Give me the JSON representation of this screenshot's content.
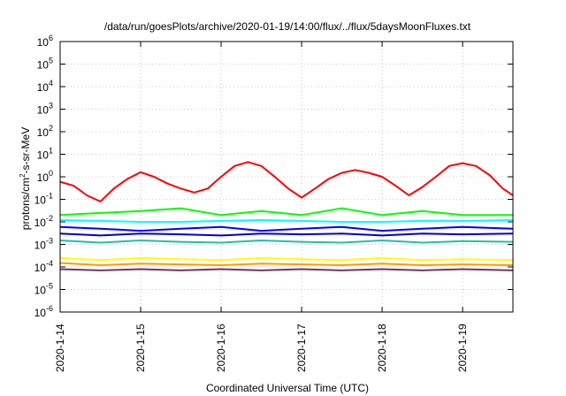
{
  "chart_data": {
    "type": "line",
    "title": "/data/run/goesPlots/archive/2020-01-19/14:00/flux/../flux/5daysMoonFluxes.txt",
    "xlabel": "Coordinated Universal Time (UTC)",
    "ylabel": "protons/cm²-s-sr-MeV",
    "ylabel_base": "protons/cm",
    "ylabel_sup": "2",
    "ylabel_rest": "-s-sr-MeV",
    "y_scale": "log",
    "ylim": [
      1e-06,
      1000000.0
    ],
    "y_ticks": [
      {
        "value": 1e-06,
        "base": "10",
        "exp": "-6"
      },
      {
        "value": 1e-05,
        "base": "10",
        "exp": "-5"
      },
      {
        "value": 0.0001,
        "base": "10",
        "exp": "-4"
      },
      {
        "value": 0.001,
        "base": "10",
        "exp": "-3"
      },
      {
        "value": 0.01,
        "base": "10",
        "exp": "-2"
      },
      {
        "value": 0.1,
        "base": "10",
        "exp": "-1"
      },
      {
        "value": 1,
        "base": "10",
        "exp": "0"
      },
      {
        "value": 10,
        "base": "10",
        "exp": "1"
      },
      {
        "value": 100,
        "base": "10",
        "exp": "2"
      },
      {
        "value": 1000,
        "base": "10",
        "exp": "3"
      },
      {
        "value": 10000,
        "base": "10",
        "exp": "4"
      },
      {
        "value": 100000,
        "base": "10",
        "exp": "5"
      },
      {
        "value": 1000000,
        "base": "10",
        "exp": "6"
      }
    ],
    "x_type": "date",
    "xlim": [
      "2020-01-14",
      "2020-01-19 15:00"
    ],
    "x_ticks": [
      "2020-1-14",
      "2020-1-15",
      "2020-1-16",
      "2020-1-17",
      "2020-1-18",
      "2020-1-19"
    ],
    "grid": true,
    "series": [
      {
        "color": "#ff0000",
        "x": [
          "2020-01-14 00:00",
          "2020-01-14 04:00",
          "2020-01-14 08:00",
          "2020-01-14 12:00",
          "2020-01-14 16:00",
          "2020-01-14 20:00",
          "2020-01-15 00:00",
          "2020-01-15 04:00",
          "2020-01-15 08:00",
          "2020-01-15 12:00",
          "2020-01-15 16:00",
          "2020-01-15 20:00",
          "2020-01-16 00:00",
          "2020-01-16 04:00",
          "2020-01-16 08:00",
          "2020-01-16 12:00",
          "2020-01-16 16:00",
          "2020-01-16 20:00",
          "2020-01-17 00:00",
          "2020-01-17 04:00",
          "2020-01-17 08:00",
          "2020-01-17 12:00",
          "2020-01-17 16:00",
          "2020-01-17 20:00",
          "2020-01-18 00:00",
          "2020-01-18 04:00",
          "2020-01-18 08:00",
          "2020-01-18 12:00",
          "2020-01-18 16:00",
          "2020-01-18 20:00",
          "2020-01-19 00:00",
          "2020-01-19 04:00",
          "2020-01-19 08:00",
          "2020-01-19 12:00",
          "2020-01-19 15:00"
        ],
        "y": [
          0.6,
          0.4,
          0.15,
          0.08,
          0.3,
          0.8,
          1.6,
          1.0,
          0.5,
          0.3,
          0.2,
          0.3,
          1.0,
          3.0,
          4.5,
          3.0,
          1.0,
          0.3,
          0.12,
          0.3,
          0.8,
          1.5,
          2.0,
          1.5,
          1.0,
          0.4,
          0.15,
          0.35,
          1.0,
          3.0,
          4.0,
          3.0,
          1.2,
          0.3,
          0.15
        ]
      },
      {
        "color": "#00ff00",
        "x": [
          "2020-01-14 00:00",
          "2020-01-14 12:00",
          "2020-01-15 00:00",
          "2020-01-15 12:00",
          "2020-01-16 00:00",
          "2020-01-16 12:00",
          "2020-01-17 00:00",
          "2020-01-17 12:00",
          "2020-01-18 00:00",
          "2020-01-18 12:00",
          "2020-01-19 00:00",
          "2020-01-19 15:00"
        ],
        "y": [
          0.02,
          0.025,
          0.03,
          0.04,
          0.02,
          0.03,
          0.02,
          0.04,
          0.02,
          0.03,
          0.02,
          0.02
        ]
      },
      {
        "color": "#00ffff",
        "x": [
          "2020-01-14 00:00",
          "2020-01-14 12:00",
          "2020-01-15 00:00",
          "2020-01-15 12:00",
          "2020-01-16 00:00",
          "2020-01-16 12:00",
          "2020-01-17 00:00",
          "2020-01-17 12:00",
          "2020-01-18 00:00",
          "2020-01-18 12:00",
          "2020-01-19 00:00",
          "2020-01-19 15:00"
        ],
        "y": [
          0.012,
          0.011,
          0.01,
          0.01,
          0.011,
          0.012,
          0.011,
          0.01,
          0.01,
          0.011,
          0.011,
          0.012
        ]
      },
      {
        "color": "#0000ff",
        "x": [
          "2020-01-14 00:00",
          "2020-01-14 12:00",
          "2020-01-15 00:00",
          "2020-01-15 12:00",
          "2020-01-16 00:00",
          "2020-01-16 12:00",
          "2020-01-17 00:00",
          "2020-01-17 12:00",
          "2020-01-18 00:00",
          "2020-01-18 12:00",
          "2020-01-19 00:00",
          "2020-01-19 15:00"
        ],
        "y": [
          0.006,
          0.005,
          0.004,
          0.005,
          0.006,
          0.004,
          0.005,
          0.006,
          0.004,
          0.005,
          0.006,
          0.005
        ]
      },
      {
        "color": "#0000cd",
        "x": [
          "2020-01-14 00:00",
          "2020-01-14 12:00",
          "2020-01-15 00:00",
          "2020-01-15 12:00",
          "2020-01-16 00:00",
          "2020-01-16 12:00",
          "2020-01-17 00:00",
          "2020-01-17 12:00",
          "2020-01-18 00:00",
          "2020-01-18 12:00",
          "2020-01-19 00:00",
          "2020-01-19 15:00"
        ],
        "y": [
          0.003,
          0.0025,
          0.003,
          0.0028,
          0.0025,
          0.003,
          0.0028,
          0.003,
          0.0025,
          0.003,
          0.0028,
          0.003
        ]
      },
      {
        "color": "#20c0a8",
        "x": [
          "2020-01-14 00:00",
          "2020-01-14 12:00",
          "2020-01-15 00:00",
          "2020-01-15 12:00",
          "2020-01-16 00:00",
          "2020-01-16 12:00",
          "2020-01-17 00:00",
          "2020-01-17 12:00",
          "2020-01-18 00:00",
          "2020-01-18 12:00",
          "2020-01-19 00:00",
          "2020-01-19 15:00"
        ],
        "y": [
          0.0015,
          0.0012,
          0.0015,
          0.0013,
          0.0012,
          0.0015,
          0.0013,
          0.0012,
          0.0015,
          0.0012,
          0.0014,
          0.0013
        ]
      },
      {
        "color": "#ffff00",
        "x": [
          "2020-01-14 00:00",
          "2020-01-14 12:00",
          "2020-01-15 00:00",
          "2020-01-15 12:00",
          "2020-01-16 00:00",
          "2020-01-16 12:00",
          "2020-01-17 00:00",
          "2020-01-17 12:00",
          "2020-01-18 00:00",
          "2020-01-18 12:00",
          "2020-01-19 00:00",
          "2020-01-19 15:00"
        ],
        "y": [
          0.00025,
          0.0002,
          0.00025,
          0.00022,
          0.0002,
          0.00025,
          0.00022,
          0.0002,
          0.00025,
          0.0002,
          0.00022,
          0.0002
        ]
      },
      {
        "color": "#ff9900",
        "x": [
          "2020-01-14 00:00",
          "2020-01-14 12:00",
          "2020-01-15 00:00",
          "2020-01-15 12:00",
          "2020-01-16 00:00",
          "2020-01-16 12:00",
          "2020-01-17 00:00",
          "2020-01-17 12:00",
          "2020-01-18 00:00",
          "2020-01-18 12:00",
          "2020-01-19 00:00",
          "2020-01-19 15:00"
        ],
        "y": [
          0.00015,
          0.00012,
          0.00014,
          0.00013,
          0.00012,
          0.00014,
          0.00013,
          0.00012,
          0.00014,
          0.00012,
          0.00013,
          0.00012
        ]
      },
      {
        "color": "#7b2d6b",
        "x": [
          "2020-01-14 00:00",
          "2020-01-14 12:00",
          "2020-01-15 00:00",
          "2020-01-15 12:00",
          "2020-01-16 00:00",
          "2020-01-16 12:00",
          "2020-01-17 00:00",
          "2020-01-17 12:00",
          "2020-01-18 00:00",
          "2020-01-18 12:00",
          "2020-01-19 00:00",
          "2020-01-19 15:00"
        ],
        "y": [
          8e-05,
          7e-05,
          8e-05,
          7e-05,
          8e-05,
          7e-05,
          8e-05,
          7e-05,
          8e-05,
          7e-05,
          8e-05,
          7e-05
        ]
      }
    ]
  }
}
